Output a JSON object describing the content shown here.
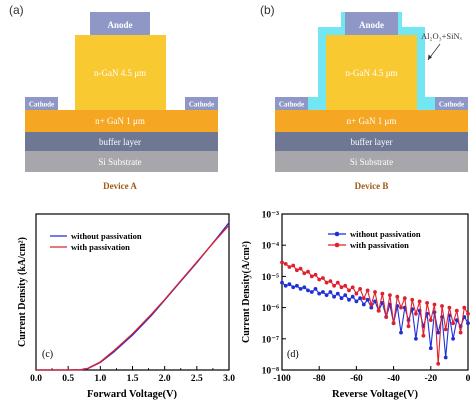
{
  "colors": {
    "anode": "#8e97c6",
    "ngan": "#f9c932",
    "nplus": "#f5a623",
    "cathode": "#8e97c6",
    "buffer": "#6e7794",
    "substrate": "#a7a7ab",
    "passivation": "#72e6f2",
    "caption": "#9e5a14",
    "series_without": "#1f2fd6",
    "series_with": "#e0202c"
  },
  "panel_a": {
    "label": "(a)",
    "anode": "Anode",
    "ngan": "n-GaN  4.5 μm",
    "cathode_left": "Cathode",
    "cathode_right": "Cathode",
    "nplus": "n+ GaN  1 μm",
    "buffer": "buffer layer",
    "substrate": "Si Substrate",
    "caption": "Device A"
  },
  "panel_b": {
    "label": "(b)",
    "anode": "Anode",
    "ngan": "n-GaN  4.5 μm",
    "cathode_left": "Cathode",
    "cathode_right": "Cathode",
    "nplus": "n+ GaN  1 μm",
    "buffer": "buffer layer",
    "substrate": "Si Substrate",
    "caption": "Device B",
    "passivation_label": "Al₂O₃+SiNₓ"
  },
  "chart_data": [
    {
      "type": "line",
      "panel_label": "(c)",
      "title": "",
      "xlabel": "Forward Voltage(V)",
      "ylabel": "Current Density (kA/cm²)",
      "xlim": [
        0,
        3.0
      ],
      "ylim": [
        0,
        1.25
      ],
      "xticks": [
        "0.0",
        "0.5",
        "1.0",
        "1.5",
        "2.0",
        "2.5",
        "3.0"
      ],
      "xtick_values": [
        0,
        0.5,
        1.0,
        1.5,
        2.0,
        2.5,
        3.0
      ],
      "yticks": [],
      "legend_position": "top-left",
      "series": [
        {
          "name": "without passivation",
          "color": "#1f2fd6",
          "x": [
            0,
            0.5,
            0.7,
            0.8,
            1.0,
            1.2,
            1.5,
            1.8,
            2.0,
            2.2,
            2.5,
            2.8,
            3.0
          ],
          "y": [
            0,
            0,
            0.002,
            0.01,
            0.06,
            0.14,
            0.28,
            0.44,
            0.56,
            0.68,
            0.86,
            1.05,
            1.18
          ]
        },
        {
          "name": "with passivation",
          "color": "#e0202c",
          "x": [
            0,
            0.5,
            0.7,
            0.8,
            1.0,
            1.2,
            1.5,
            1.8,
            2.0,
            2.2,
            2.5,
            2.8,
            3.0
          ],
          "y": [
            0,
            0,
            0.003,
            0.012,
            0.065,
            0.15,
            0.29,
            0.45,
            0.565,
            0.685,
            0.865,
            1.045,
            1.16
          ]
        }
      ]
    },
    {
      "type": "line",
      "panel_label": "(d)",
      "title": "",
      "xlabel": "Reverse Voltage(V)",
      "ylabel": "Current Density(A/cm²)",
      "xlim": [
        -100,
        0
      ],
      "ylim_log10": [
        -8,
        -3
      ],
      "log_scale_y": true,
      "xticks": [
        "-100",
        "-80",
        "-60",
        "-40",
        "-20",
        "0"
      ],
      "xtick_values": [
        -100,
        -80,
        -60,
        -40,
        -20,
        0
      ],
      "yticks": [
        "10⁻⁸",
        "10⁻⁷",
        "10⁻⁶",
        "10⁻⁵",
        "10⁻⁴",
        "10⁻³"
      ],
      "ytick_values_log10": [
        -8,
        -7,
        -6,
        -5,
        -4,
        -3
      ],
      "legend_position": "top-center",
      "series": [
        {
          "name": "without passivation",
          "color": "#1f2fd6",
          "marker": "circle",
          "x": [
            -100,
            -98,
            -96,
            -94,
            -92,
            -90,
            -88,
            -86,
            -84,
            -82,
            -80,
            -78,
            -76,
            -74,
            -72,
            -70,
            -68,
            -66,
            -64,
            -62,
            -60,
            -58,
            -56,
            -54,
            -52,
            -50,
            -48,
            -46,
            -44,
            -42,
            -40,
            -38,
            -36,
            -34,
            -32,
            -30,
            -28,
            -26,
            -24,
            -22,
            -20,
            -18,
            -16,
            -14,
            -12,
            -10,
            -8,
            -6,
            -4,
            -2,
            0
          ],
          "y_log10": [
            -5.2,
            -5.3,
            -5.25,
            -5.35,
            -5.3,
            -5.4,
            -5.35,
            -5.45,
            -5.5,
            -5.4,
            -5.55,
            -5.5,
            -5.6,
            -5.5,
            -5.65,
            -5.55,
            -5.7,
            -5.6,
            -5.75,
            -5.65,
            -5.8,
            -5.7,
            -5.9,
            -5.75,
            -6.0,
            -5.8,
            -6.1,
            -5.85,
            -6.3,
            -5.9,
            -6.5,
            -5.95,
            -6.8,
            -6.0,
            -6.4,
            -6.05,
            -7.0,
            -6.1,
            -6.6,
            -6.2,
            -7.3,
            -6.15,
            -6.8,
            -6.3,
            -7.6,
            -6.25,
            -7.0,
            -6.4,
            -6.6,
            -6.3,
            -6.5
          ]
        },
        {
          "name": "with passivation",
          "color": "#e0202c",
          "marker": "circle",
          "x": [
            -100,
            -98,
            -96,
            -94,
            -92,
            -90,
            -88,
            -86,
            -84,
            -82,
            -80,
            -78,
            -76,
            -74,
            -72,
            -70,
            -68,
            -66,
            -64,
            -62,
            -60,
            -58,
            -56,
            -54,
            -52,
            -50,
            -48,
            -46,
            -44,
            -42,
            -40,
            -38,
            -36,
            -34,
            -32,
            -30,
            -28,
            -26,
            -24,
            -22,
            -20,
            -18,
            -16,
            -14,
            -12,
            -10,
            -8,
            -6,
            -4,
            -2,
            0
          ],
          "y_log10": [
            -4.55,
            -4.6,
            -4.7,
            -4.65,
            -4.8,
            -4.75,
            -4.9,
            -4.85,
            -5.0,
            -4.95,
            -5.1,
            -5.05,
            -5.2,
            -5.15,
            -5.3,
            -5.2,
            -5.35,
            -5.3,
            -5.45,
            -5.35,
            -5.55,
            -5.4,
            -5.7,
            -5.45,
            -5.9,
            -5.5,
            -6.1,
            -5.55,
            -6.3,
            -5.6,
            -6.5,
            -5.65,
            -6.0,
            -5.7,
            -6.6,
            -5.75,
            -6.2,
            -5.8,
            -6.9,
            -5.85,
            -6.4,
            -5.9,
            -7.8,
            -5.95,
            -6.7,
            -6.0,
            -6.5,
            -6.1,
            -6.8,
            -6.0,
            -6.2
          ]
        }
      ]
    }
  ]
}
